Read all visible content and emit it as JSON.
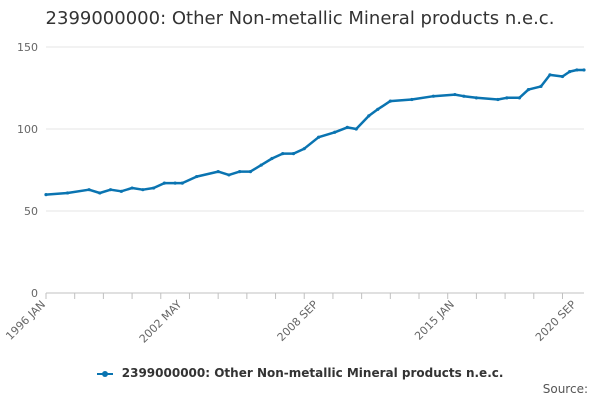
{
  "chart_data": {
    "type": "line",
    "title": "2399000000: Other Non-metallic Mineral products n.e.c.",
    "xlabel": "",
    "ylabel": "",
    "ylim": [
      0,
      150
    ],
    "yticks": [
      0,
      50,
      100,
      150
    ],
    "xtick_labels": [
      "1996 JAN",
      "2002 MAY",
      "2008 SEP",
      "2015 JAN",
      "2020 SEP"
    ],
    "grid": true,
    "legend": "bottom",
    "color": "#0a74b1",
    "series": [
      {
        "name": "2399000000: Other Non-metallic Mineral products n.e.c.",
        "x": [
          "1996 JAN",
          "1997 JAN",
          "1998 JAN",
          "1998 JUL",
          "1999 JAN",
          "1999 JUL",
          "2000 JAN",
          "2000 JUL",
          "2001 JAN",
          "2001 JUL",
          "2002 JAN",
          "2002 MAY",
          "2003 JAN",
          "2004 JAN",
          "2004 JUL",
          "2005 JAN",
          "2005 JUL",
          "2006 JAN",
          "2006 JUL",
          "2007 JAN",
          "2007 JUL",
          "2008 JAN",
          "2008 SEP",
          "2009 JUN",
          "2010 JAN",
          "2010 JUN",
          "2011 JAN",
          "2011 JUN",
          "2012 JAN",
          "2013 JAN",
          "2014 JAN",
          "2015 JAN",
          "2015 JUN",
          "2016 JAN",
          "2017 JAN",
          "2017 JUN",
          "2018 JAN",
          "2018 JUN",
          "2019 JAN",
          "2019 JUN",
          "2020 JAN",
          "2020 MAY",
          "2020 SEP",
          "2021 JAN"
        ],
        "values": [
          60,
          61,
          63,
          61,
          63,
          62,
          64,
          63,
          64,
          67,
          67,
          67,
          71,
          74,
          72,
          74,
          74,
          78,
          82,
          85,
          85,
          88,
          95,
          98,
          101,
          100,
          108,
          112,
          117,
          118,
          120,
          121,
          120,
          119,
          118,
          119,
          119,
          124,
          126,
          133,
          132,
          135,
          136,
          136
        ]
      }
    ]
  },
  "legend": {
    "label": "2399000000: Other Non-metallic Mineral products n.e.c."
  },
  "source": {
    "label": "Source:"
  }
}
